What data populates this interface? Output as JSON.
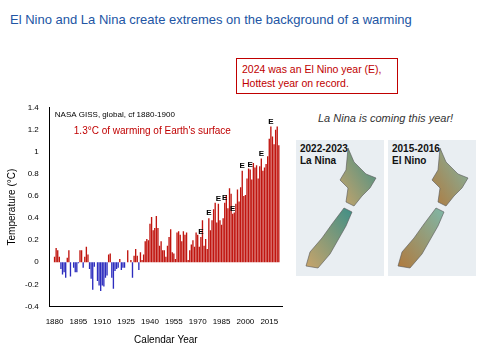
{
  "slide": {
    "title": "El Nino and La Nina create extremes on the background of a warming",
    "callout": [
      "2024 was an El Nino year (E),",
      "Hottest year on record."
    ],
    "note": "La Nina is coming this year!",
    "maps": [
      {
        "label": [
          "2022-2023",
          "La Nina"
        ]
      },
      {
        "label": [
          "2015-2016",
          "El Nino"
        ]
      }
    ]
  },
  "chart_data": {
    "type": "bar",
    "subtitle": "NASA GISS, global, cf 1880-1900",
    "x_label": "Calendar Year",
    "y_label": "Temperature (°C)",
    "x": [
      1880,
      1881,
      1882,
      1883,
      1884,
      1885,
      1886,
      1887,
      1888,
      1889,
      1890,
      1891,
      1892,
      1893,
      1894,
      1895,
      1896,
      1897,
      1898,
      1899,
      1900,
      1901,
      1902,
      1903,
      1904,
      1905,
      1906,
      1907,
      1908,
      1909,
      1910,
      1911,
      1912,
      1913,
      1914,
      1915,
      1916,
      1917,
      1918,
      1919,
      1920,
      1921,
      1922,
      1923,
      1924,
      1925,
      1926,
      1927,
      1928,
      1929,
      1930,
      1931,
      1932,
      1933,
      1934,
      1935,
      1936,
      1937,
      1938,
      1939,
      1940,
      1941,
      1942,
      1943,
      1944,
      1945,
      1946,
      1947,
      1948,
      1949,
      1950,
      1951,
      1952,
      1953,
      1954,
      1955,
      1956,
      1957,
      1958,
      1959,
      1960,
      1961,
      1962,
      1963,
      1964,
      1965,
      1966,
      1967,
      1968,
      1969,
      1970,
      1971,
      1972,
      1973,
      1974,
      1975,
      1976,
      1977,
      1978,
      1979,
      1980,
      1981,
      1982,
      1983,
      1984,
      1985,
      1986,
      1987,
      1988,
      1989,
      1990,
      1991,
      1992,
      1993,
      1994,
      1995,
      1996,
      1997,
      1998,
      1999,
      2000,
      2001,
      2002,
      2003,
      2004,
      2005,
      2006,
      2007,
      2008,
      2009,
      2010,
      2011,
      2012,
      2013,
      2014,
      2015,
      2016,
      2017,
      2018,
      2019,
      2020,
      2021
    ],
    "values": [
      0.05,
      0.13,
      0.11,
      0.05,
      -0.06,
      -0.11,
      -0.09,
      -0.14,
      0.04,
      0.11,
      -0.13,
      0.0,
      -0.05,
      -0.09,
      -0.09,
      -0.01,
      0.11,
      0.11,
      -0.05,
      0.05,
      0.14,
      0.07,
      -0.06,
      -0.15,
      -0.25,
      -0.04,
      0.0,
      -0.17,
      -0.21,
      -0.26,
      -0.21,
      -0.22,
      -0.14,
      -0.12,
      0.07,
      0.08,
      -0.14,
      -0.24,
      -0.08,
      -0.06,
      -0.05,
      0.03,
      -0.07,
      -0.05,
      -0.05,
      0.0,
      0.11,
      0.0,
      0.02,
      -0.14,
      0.06,
      0.12,
      0.06,
      -0.07,
      0.09,
      0.02,
      0.07,
      0.19,
      0.21,
      0.2,
      0.35,
      0.41,
      0.29,
      0.31,
      0.42,
      0.31,
      0.15,
      0.19,
      0.11,
      0.11,
      0.05,
      0.15,
      0.23,
      0.3,
      0.09,
      0.08,
      0.03,
      0.27,
      0.28,
      0.25,
      0.19,
      0.28,
      0.25,
      0.27,
      0.02,
      0.11,
      0.16,
      0.2,
      0.14,
      0.27,
      0.25,
      0.14,
      0.23,
      0.38,
      0.15,
      0.21,
      0.12,
      0.4,
      0.29,
      0.38,
      0.48,
      0.54,
      0.36,
      0.53,
      0.38,
      0.34,
      0.4,
      0.54,
      0.61,
      0.49,
      0.67,
      0.62,
      0.44,
      0.45,
      0.53,
      0.66,
      0.55,
      0.68,
      0.83,
      0.6,
      0.61,
      0.76,
      0.85,
      0.84,
      0.75,
      0.9,
      0.86,
      0.88,
      0.76,
      0.87,
      0.94,
      0.83,
      0.86,
      0.89,
      0.96,
      1.12,
      1.23,
      1.14,
      1.07,
      1.2,
      1.23,
      1.06
    ],
    "colors": [
      "#c0150f",
      "#c0150f",
      "#c0150f",
      "#c0150f",
      "#2d2dbe",
      "#2d2dbe",
      "#2d2dbe",
      "#2d2dbe",
      "#c0150f",
      "#c0150f",
      "#2d2dbe",
      "#c0150f",
      "#2d2dbe",
      "#2d2dbe",
      "#2d2dbe",
      "#2d2dbe",
      "#c0150f",
      "#c0150f",
      "#2d2dbe",
      "#c0150f",
      "#c0150f",
      "#c0150f",
      "#2d2dbe",
      "#2d2dbe",
      "#2d2dbe",
      "#2d2dbe",
      "#c0150f",
      "#2d2dbe",
      "#2d2dbe",
      "#2d2dbe",
      "#2d2dbe",
      "#2d2dbe",
      "#2d2dbe",
      "#2d2dbe",
      "#c0150f",
      "#c0150f",
      "#2d2dbe",
      "#2d2dbe",
      "#2d2dbe",
      "#2d2dbe",
      "#2d2dbe",
      "#c0150f",
      "#2d2dbe",
      "#2d2dbe",
      "#2d2dbe",
      "#c0150f",
      "#c0150f",
      "#c0150f",
      "#c0150f",
      "#2d2dbe",
      "#c0150f",
      "#c0150f",
      "#c0150f",
      "#2d2dbe",
      "#c0150f",
      "#c0150f",
      "#c0150f",
      "#c0150f",
      "#c0150f",
      "#c0150f",
      "#c0150f",
      "#c0150f",
      "#c0150f",
      "#c0150f",
      "#c0150f",
      "#c0150f",
      "#c0150f",
      "#c0150f",
      "#c0150f",
      "#c0150f",
      "#c0150f",
      "#c0150f",
      "#c0150f",
      "#c0150f",
      "#c0150f",
      "#c0150f",
      "#c0150f",
      "#c0150f",
      "#c0150f",
      "#c0150f",
      "#c0150f",
      "#c0150f",
      "#c0150f",
      "#c0150f",
      "#c0150f",
      "#c0150f",
      "#c0150f",
      "#c0150f",
      "#c0150f",
      "#c0150f",
      "#c0150f",
      "#c0150f",
      "#c0150f",
      "#c0150f",
      "#c0150f",
      "#c0150f",
      "#c0150f",
      "#c0150f",
      "#c0150f",
      "#c0150f",
      "#c0150f",
      "#c0150f",
      "#c0150f",
      "#c0150f",
      "#c0150f",
      "#c0150f",
      "#c0150f",
      "#c0150f",
      "#c0150f",
      "#c0150f",
      "#c0150f",
      "#c0150f",
      "#c0150f",
      "#c0150f",
      "#c0150f",
      "#c0150f",
      "#c0150f",
      "#c0150f",
      "#c0150f",
      "#c0150f",
      "#c0150f",
      "#c0150f",
      "#c0150f",
      "#c0150f",
      "#c0150f",
      "#c0150f",
      "#c0150f",
      "#c0150f",
      "#c0150f",
      "#c0150f",
      "#c0150f",
      "#c0150f",
      "#c0150f",
      "#c0150f",
      "#c0150f",
      "#c0150f",
      "#c0150f",
      "#c0150f",
      "#c0150f",
      "#c0150f",
      "#c0150f",
      "#c0150f"
    ],
    "xlim": [
      1877,
      2023
    ],
    "xticks": [
      1880,
      1895,
      1910,
      1925,
      1940,
      1955,
      1970,
      1985,
      2000,
      2015
    ],
    "ylim": [
      -0.4,
      1.4
    ],
    "yticks": [
      -0.4,
      -0.2,
      0,
      0.2,
      0.4,
      0.6,
      0.8,
      1,
      1.2,
      1.4
    ],
    "grid": false,
    "annotations": [
      {
        "text": "1.3°C of warming of Earth's surface",
        "color": "#c00000"
      },
      {
        "text": "E",
        "x": 1972
      },
      {
        "text": "E",
        "x": 1977
      },
      {
        "text": "E",
        "x": 1983
      },
      {
        "text": "E",
        "x": 1987
      },
      {
        "text": "E",
        "x": 1992
      },
      {
        "text": "E",
        "x": 1998
      },
      {
        "text": "E",
        "x": 2003
      },
      {
        "text": "E",
        "x": 2010
      },
      {
        "text": "E",
        "x": 2016
      }
    ]
  }
}
